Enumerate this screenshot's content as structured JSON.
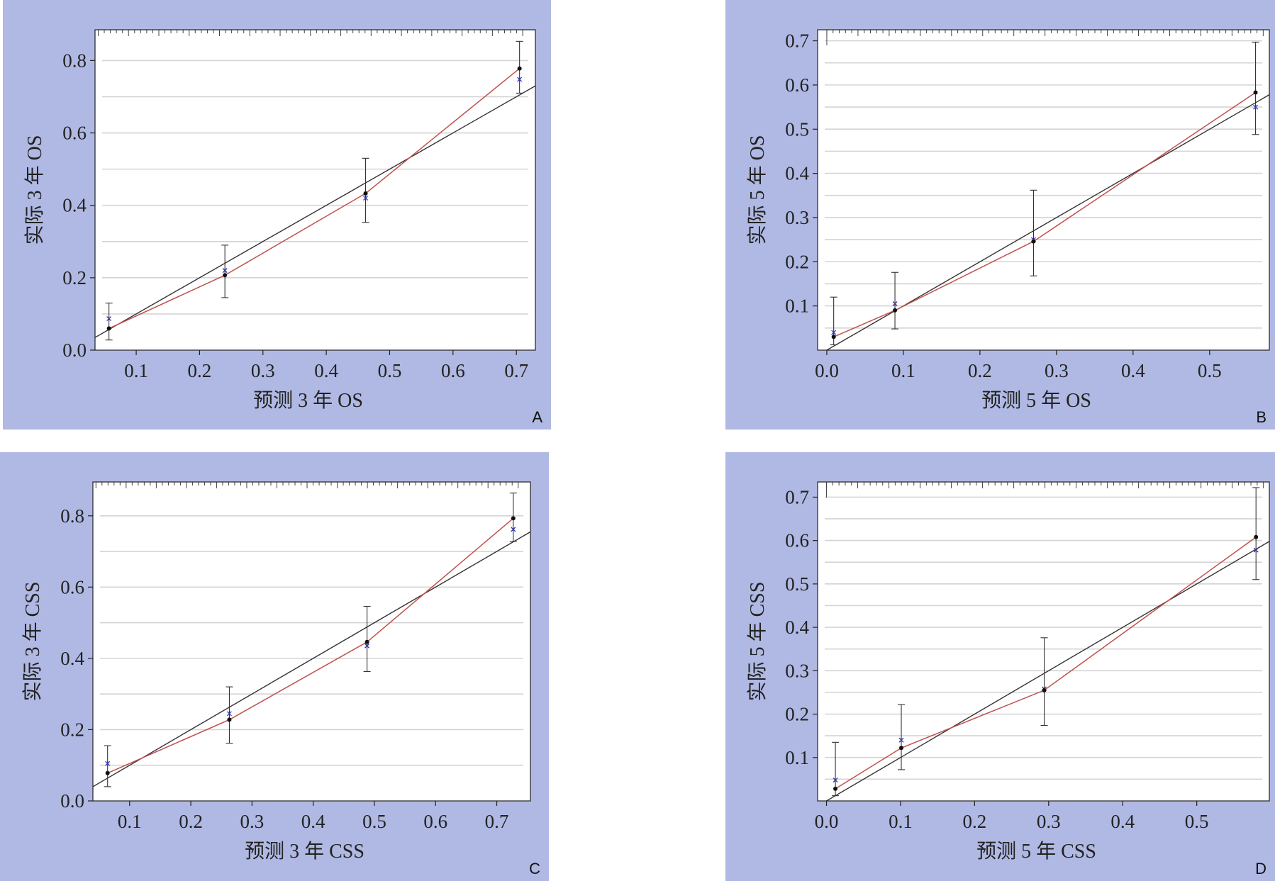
{
  "colors": {
    "panel_bg": "#b0b9e3",
    "plot_bg": "#ffffff",
    "grid": "#d4d4d4",
    "ideal_line": "#333333",
    "calibration_line": "#c0504d",
    "observed_point": "#111111",
    "corrected_point": "#3a3aa8"
  },
  "chart_data": [
    {
      "type": "line",
      "panel_label": "A",
      "xlabel": "预测 3 年 OS",
      "ylabel": "实际 3 年 OS",
      "xlim": [
        0.035,
        0.73
      ],
      "ylim": [
        0.0,
        0.885
      ],
      "x_ticks": [
        0.1,
        0.2,
        0.3,
        0.4,
        0.5,
        0.6,
        0.7
      ],
      "x_tick_labels": [
        "0.1",
        "0.2",
        "0.3",
        "0.4",
        "0.5",
        "0.6",
        "0.7"
      ],
      "y_ticks": [
        0.0,
        0.2,
        0.4,
        0.6,
        0.8
      ],
      "y_tick_labels": [
        "0.0",
        "0.2",
        "0.4",
        "0.6",
        "0.8"
      ],
      "grid": "horizontal",
      "ideal_line": [
        [
          0.035,
          0.035
        ],
        [
          0.73,
          0.73
        ]
      ],
      "points": [
        {
          "x": 0.057,
          "observed": 0.06,
          "lower": 0.028,
          "upper": 0.13,
          "corrected": 0.087
        },
        {
          "x": 0.24,
          "observed": 0.207,
          "lower": 0.145,
          "upper": 0.29,
          "corrected": 0.22
        },
        {
          "x": 0.462,
          "observed": 0.433,
          "lower": 0.353,
          "upper": 0.53,
          "corrected": 0.42
        },
        {
          "x": 0.705,
          "observed": 0.778,
          "lower": 0.71,
          "upper": 0.853,
          "corrected": 0.748
        }
      ],
      "rug_from": 0.04,
      "rug_to": 0.71
    },
    {
      "type": "line",
      "panel_label": "B",
      "xlabel": "预测 5 年 OS",
      "ylabel": "实际 5 年 OS",
      "xlim": [
        -0.012,
        0.578
      ],
      "ylim": [
        0.0,
        0.725
      ],
      "y_zero_offset": 0.014,
      "x_ticks": [
        0.0,
        0.1,
        0.2,
        0.3,
        0.4,
        0.5
      ],
      "x_tick_labels": [
        "0.0",
        "0.1",
        "0.2",
        "0.3",
        "0.4",
        "0.5"
      ],
      "y_ticks": [
        0.1,
        0.2,
        0.3,
        0.4,
        0.5,
        0.6,
        0.7
      ],
      "y_tick_labels": [
        "0.1",
        "0.2",
        "0.3",
        "0.4",
        "0.5",
        "0.6",
        "0.7"
      ],
      "grid": "horizontal",
      "ideal_line": [
        [
          -0.012,
          -0.012
        ],
        [
          0.578,
          0.578
        ]
      ],
      "points": [
        {
          "x": 0.009,
          "observed": 0.03,
          "lower": 0.012,
          "upper": 0.12,
          "corrected": 0.04
        },
        {
          "x": 0.089,
          "observed": 0.09,
          "lower": 0.048,
          "upper": 0.176,
          "corrected": 0.105
        },
        {
          "x": 0.27,
          "observed": 0.246,
          "lower": 0.168,
          "upper": 0.362,
          "corrected": 0.25
        },
        {
          "x": 0.56,
          "observed": 0.583,
          "lower": 0.488,
          "upper": 0.697,
          "corrected": 0.55
        }
      ],
      "rug_from": 0.0,
      "rug_to": 0.57
    },
    {
      "type": "line",
      "panel_label": "C",
      "xlabel": "预测 3 年 CSS",
      "ylabel": "实际 3 年 CSS",
      "xlim": [
        0.04,
        0.755
      ],
      "ylim": [
        0.0,
        0.895
      ],
      "x_ticks": [
        0.1,
        0.2,
        0.3,
        0.4,
        0.5,
        0.6,
        0.7
      ],
      "x_tick_labels": [
        "0.1",
        "0.2",
        "0.3",
        "0.4",
        "0.5",
        "0.6",
        "0.7"
      ],
      "y_ticks": [
        0.0,
        0.2,
        0.4,
        0.6,
        0.8
      ],
      "y_tick_labels": [
        "0.0",
        "0.2",
        "0.4",
        "0.6",
        "0.8"
      ],
      "grid": "horizontal",
      "ideal_line": [
        [
          0.04,
          0.04
        ],
        [
          0.755,
          0.755
        ]
      ],
      "points": [
        {
          "x": 0.064,
          "observed": 0.078,
          "lower": 0.04,
          "upper": 0.155,
          "corrected": 0.105
        },
        {
          "x": 0.263,
          "observed": 0.228,
          "lower": 0.162,
          "upper": 0.32,
          "corrected": 0.245
        },
        {
          "x": 0.488,
          "observed": 0.446,
          "lower": 0.363,
          "upper": 0.546,
          "corrected": 0.435
        },
        {
          "x": 0.727,
          "observed": 0.793,
          "lower": 0.728,
          "upper": 0.864,
          "corrected": 0.762
        }
      ],
      "rug_from": 0.045,
      "rug_to": 0.735
    },
    {
      "type": "line",
      "panel_label": "D",
      "xlabel": "预测 5 年 CSS",
      "ylabel": "实际 5 年 CSS",
      "xlim": [
        -0.012,
        0.598
      ],
      "ylim": [
        0.0,
        0.735
      ],
      "y_zero_offset": 0.008,
      "x_ticks": [
        0.0,
        0.1,
        0.2,
        0.3,
        0.4,
        0.5
      ],
      "x_tick_labels": [
        "0.0",
        "0.1",
        "0.2",
        "0.3",
        "0.4",
        "0.5"
      ],
      "y_ticks": [
        0.1,
        0.2,
        0.3,
        0.4,
        0.5,
        0.6,
        0.7
      ],
      "y_tick_labels": [
        "0.1",
        "0.2",
        "0.3",
        "0.4",
        "0.5",
        "0.6",
        "0.7"
      ],
      "grid": "horizontal",
      "ideal_line": [
        [
          -0.012,
          -0.012
        ],
        [
          0.598,
          0.598
        ]
      ],
      "points": [
        {
          "x": 0.012,
          "observed": 0.028,
          "lower": 0.012,
          "upper": 0.135,
          "corrected": 0.048
        },
        {
          "x": 0.101,
          "observed": 0.122,
          "lower": 0.072,
          "upper": 0.222,
          "corrected": 0.14
        },
        {
          "x": 0.294,
          "observed": 0.255,
          "lower": 0.174,
          "upper": 0.376,
          "corrected": 0.258
        },
        {
          "x": 0.58,
          "observed": 0.608,
          "lower": 0.51,
          "upper": 0.722,
          "corrected": 0.578
        }
      ],
      "rug_from": 0.0,
      "rug_to": 0.59
    }
  ]
}
